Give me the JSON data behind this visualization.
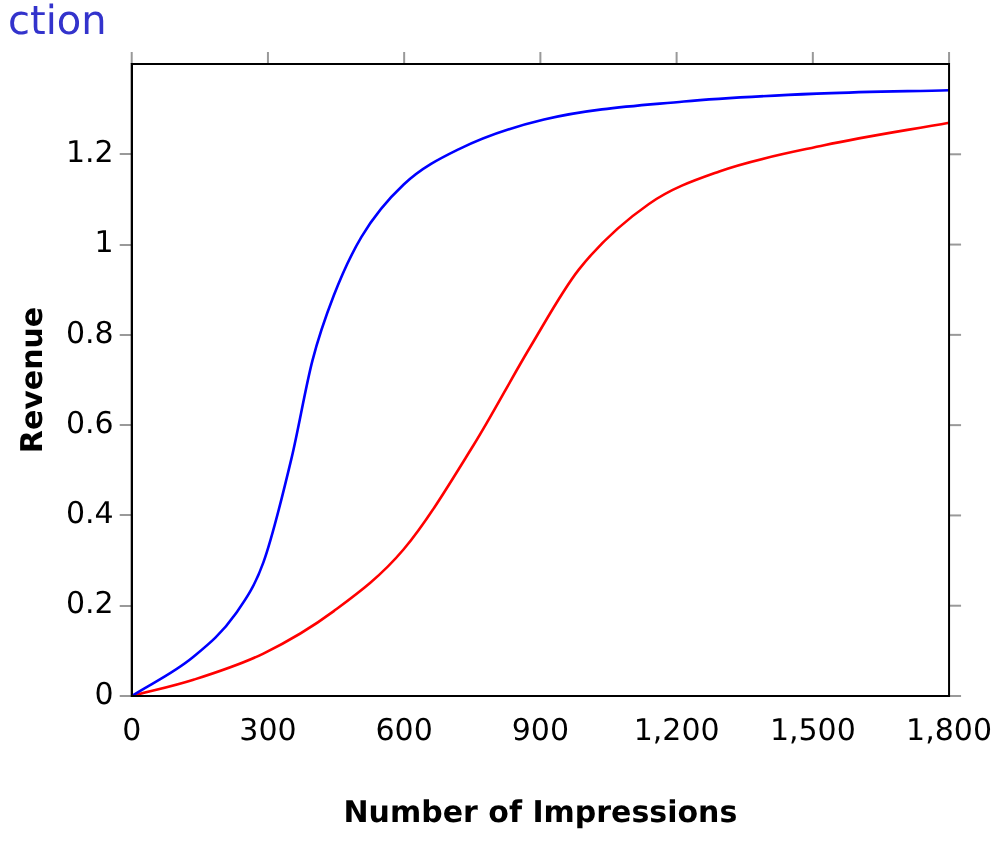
{
  "chart_data": {
    "type": "line",
    "title": "ction",
    "xlabel": "Number of Impressions",
    "ylabel": "Revenue",
    "xlim": [
      0,
      1800
    ],
    "xticks": [
      0,
      300,
      600,
      900,
      {
        "value": 1200,
        "label": "1,200"
      },
      {
        "value": 1500,
        "label": "1,500"
      },
      {
        "value": 1800,
        "label": "1,800"
      }
    ],
    "ylim": [
      0,
      1.4
    ],
    "yticks": [
      0,
      0.2,
      0.4,
      0.6,
      0.8,
      1,
      1.2
    ],
    "grid": false,
    "legend": false,
    "marker": "none",
    "line_style": "solid",
    "series": [
      {
        "color": "#0000ff",
        "x": [
          0,
          136,
          228,
          290,
          352,
          398,
          445,
          506,
          599,
          722,
          908,
          1216,
          1525,
          1800
        ],
        "values": [
          0,
          0.087,
          0.181,
          0.296,
          0.527,
          0.743,
          0.887,
          1.017,
          1.133,
          1.212,
          1.277,
          1.317,
          1.335,
          1.342
        ]
      },
      {
        "color": "#ff0000",
        "x": [
          0,
          136,
          290,
          445,
          599,
          753,
          877,
          985,
          1139,
          1294,
          1525,
          1800
        ],
        "values": [
          0,
          0.036,
          0.094,
          0.188,
          0.325,
          0.556,
          0.772,
          0.945,
          1.09,
          1.162,
          1.22,
          1.27
        ]
      }
    ]
  }
}
